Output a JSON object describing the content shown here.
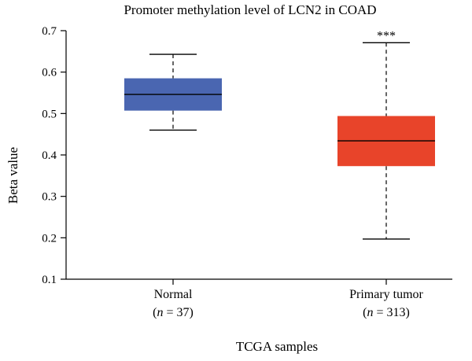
{
  "chart_data": {
    "type": "box",
    "title": "Promoter methylation level of LCN2 in COAD",
    "xlabel": "TCGA samples",
    "ylabel": "Beta value",
    "ylim": [
      0.1,
      0.7
    ],
    "yticks": [
      "0.1",
      "0.2",
      "0.3",
      "0.4",
      "0.5",
      "0.6",
      "0.7"
    ],
    "grid": false,
    "categories": [
      {
        "label": "Normal",
        "n_label": "n",
        "n_value": " = 37",
        "color": "#4a66b1",
        "min": 0.46,
        "q1": 0.507,
        "median": 0.546,
        "q3": 0.585,
        "max": 0.643,
        "annotation": ""
      },
      {
        "label": "Primary tumor",
        "n_label": "n",
        "n_value": " = 313",
        "color": "#e8442a",
        "min": 0.197,
        "q1": 0.373,
        "median": 0.434,
        "q3": 0.494,
        "max": 0.671,
        "annotation": "***"
      }
    ]
  }
}
